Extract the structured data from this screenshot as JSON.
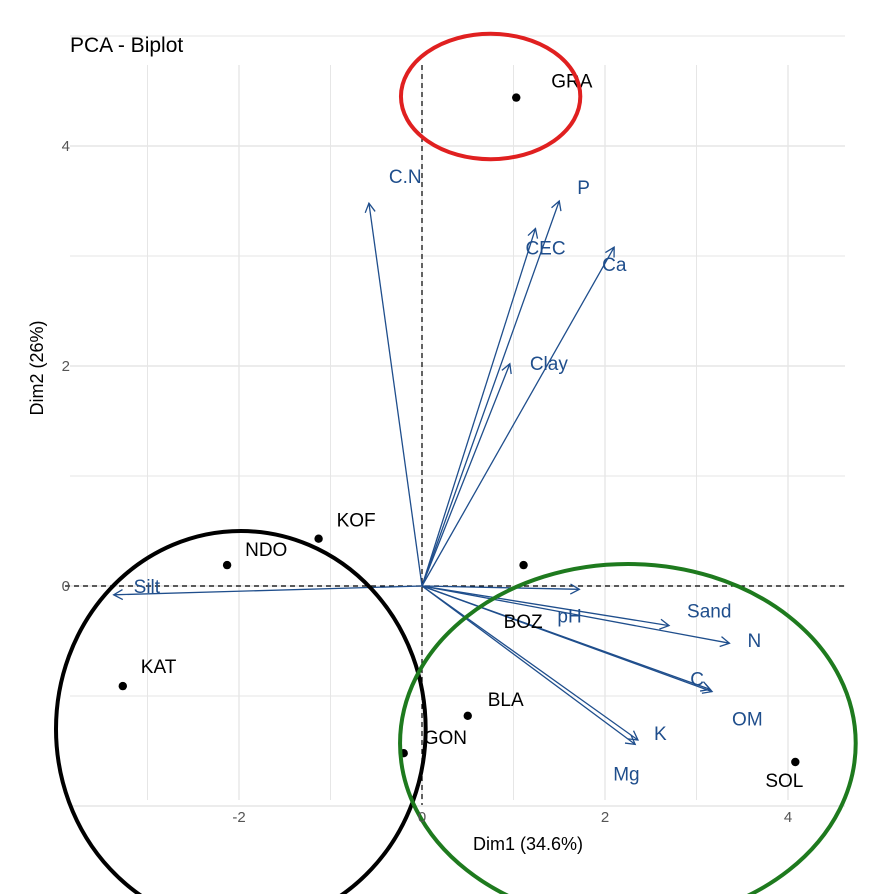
{
  "chart_data": {
    "type": "scatter",
    "title": "PCA - Biplot",
    "xlabel": "Dim1 (34.6%)",
    "ylabel": "Dim2 (26%)",
    "xlim": [
      -3.4,
      4.5
    ],
    "ylim": [
      -2.7,
      5.2
    ],
    "x_ticks": [
      -2,
      0,
      2,
      4
    ],
    "y_ticks": [
      0,
      2,
      4
    ],
    "grid": true,
    "zero_lines": true,
    "points": [
      {
        "label": "GRA",
        "x": 1.03,
        "y": 4.44
      },
      {
        "label": "KOF",
        "x": -1.13,
        "y": 0.43
      },
      {
        "label": "NDO",
        "x": -2.13,
        "y": 0.19
      },
      {
        "label": "BOZ",
        "x": 1.11,
        "y": 0.19
      },
      {
        "label": "KAT",
        "x": -3.27,
        "y": -0.91
      },
      {
        "label": "BLA",
        "x": 0.5,
        "y": -1.18
      },
      {
        "label": "GON",
        "x": -0.2,
        "y": -1.52
      },
      {
        "label": "SOL",
        "x": 4.08,
        "y": -1.6
      }
    ],
    "vectors": [
      {
        "label": "C.N",
        "x": -0.58,
        "y": 3.48
      },
      {
        "label": "P",
        "x": 1.5,
        "y": 3.5
      },
      {
        "label": "CEC",
        "x": 1.24,
        "y": 3.25
      },
      {
        "label": "Ca",
        "x": 2.1,
        "y": 3.08
      },
      {
        "label": "Clay",
        "x": 0.96,
        "y": 2.02
      },
      {
        "label": "Silt",
        "x": -3.37,
        "y": -0.08
      },
      {
        "label": "pH",
        "x": 1.72,
        "y": -0.03
      },
      {
        "label": "Sand",
        "x": 2.7,
        "y": -0.36
      },
      {
        "label": "N",
        "x": 3.36,
        "y": -0.52
      },
      {
        "label": "C",
        "x": 3.15,
        "y": -0.94
      },
      {
        "label": "OM",
        "x": 3.17,
        "y": -0.96
      },
      {
        "label": "K",
        "x": 2.36,
        "y": -1.4
      },
      {
        "label": "Mg",
        "x": 2.33,
        "y": -1.44
      }
    ],
    "colors": {
      "points": "#000000",
      "vectors": "#1f4e8c",
      "grid": "#e6e6e6",
      "ellipse_top": "#e02020",
      "ellipse_left": "#000000",
      "ellipse_right": "#1e7a1e"
    },
    "ellipses": [
      {
        "name": "top",
        "cx": 0.75,
        "cy": 4.45,
        "rx": 0.98,
        "ry": 0.57
      },
      {
        "name": "left",
        "cx": -1.98,
        "cy": -1.3,
        "rx": 2.02,
        "ry": 1.8
      },
      {
        "name": "right",
        "cx": 2.25,
        "cy": -1.43,
        "rx": 2.49,
        "ry": 1.63
      }
    ]
  }
}
